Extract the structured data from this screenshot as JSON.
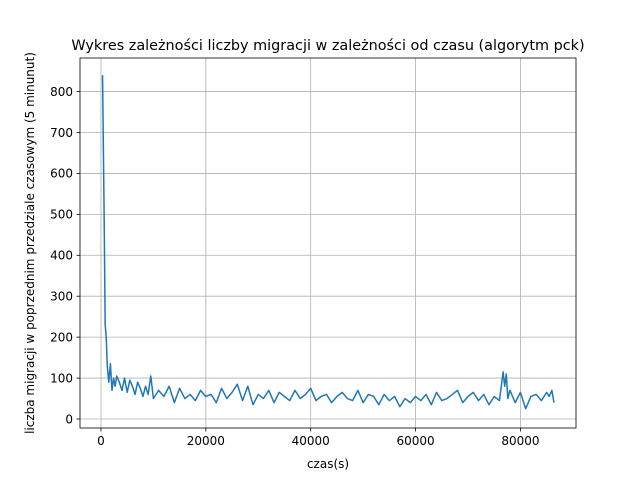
{
  "chart_data": {
    "type": "line",
    "title": "Wykres zależności liczby migracji w zależności od czasu (algorytm pck)",
    "xlabel": "czas(s)",
    "ylabel": "liczba migracji w poprzednim  przedziale czasowym (5 minunut)",
    "xlim": [
      -4000,
      90600
    ],
    "ylim": [
      -22,
      882
    ],
    "xticks": [
      0,
      20000,
      40000,
      60000,
      80000
    ],
    "yticks": [
      0,
      100,
      200,
      300,
      400,
      500,
      600,
      700,
      800
    ],
    "grid": true,
    "series": [
      {
        "color": "#1f77b4",
        "x": [
          300,
          600,
          800,
          1000,
          1200,
          1500,
          1800,
          2100,
          2400,
          2700,
          3000,
          3500,
          4000,
          4500,
          5000,
          5500,
          6000,
          6500,
          7000,
          7500,
          8000,
          8500,
          9000,
          9500,
          10000,
          11000,
          12000,
          13000,
          14000,
          15000,
          16000,
          17000,
          18000,
          19000,
          20000,
          21000,
          22000,
          23000,
          24000,
          25000,
          26000,
          27000,
          28000,
          29000,
          30000,
          31000,
          32000,
          33000,
          34000,
          35000,
          36000,
          37000,
          38000,
          39000,
          40000,
          41000,
          42000,
          43000,
          44000,
          45000,
          46000,
          47000,
          48000,
          49000,
          50000,
          51000,
          52000,
          53000,
          54000,
          55000,
          56000,
          57000,
          58000,
          59000,
          60000,
          61000,
          62000,
          63000,
          64000,
          65000,
          66000,
          67000,
          68000,
          69000,
          70000,
          71000,
          72000,
          73000,
          74000,
          75000,
          76000,
          76700,
          77000,
          77300,
          77600,
          78000,
          79000,
          80000,
          81000,
          82000,
          83000,
          84000,
          85000,
          85500,
          86000,
          86400
        ],
        "y": [
          840,
          500,
          230,
          200,
          130,
          90,
          135,
          70,
          100,
          80,
          105,
          90,
          70,
          100,
          65,
          95,
          80,
          60,
          90,
          75,
          55,
          80,
          60,
          105,
          50,
          70,
          55,
          80,
          40,
          75,
          50,
          60,
          45,
          70,
          55,
          60,
          40,
          75,
          50,
          65,
          85,
          45,
          80,
          35,
          60,
          50,
          70,
          40,
          65,
          55,
          45,
          70,
          50,
          60,
          75,
          45,
          55,
          60,
          40,
          55,
          65,
          50,
          45,
          70,
          40,
          60,
          55,
          35,
          60,
          45,
          55,
          30,
          50,
          40,
          55,
          45,
          60,
          35,
          65,
          45,
          50,
          60,
          70,
          40,
          55,
          65,
          45,
          60,
          35,
          55,
          45,
          115,
          80,
          110,
          50,
          70,
          40,
          65,
          25,
          55,
          60,
          45,
          65,
          55,
          70,
          40
        ]
      }
    ]
  }
}
